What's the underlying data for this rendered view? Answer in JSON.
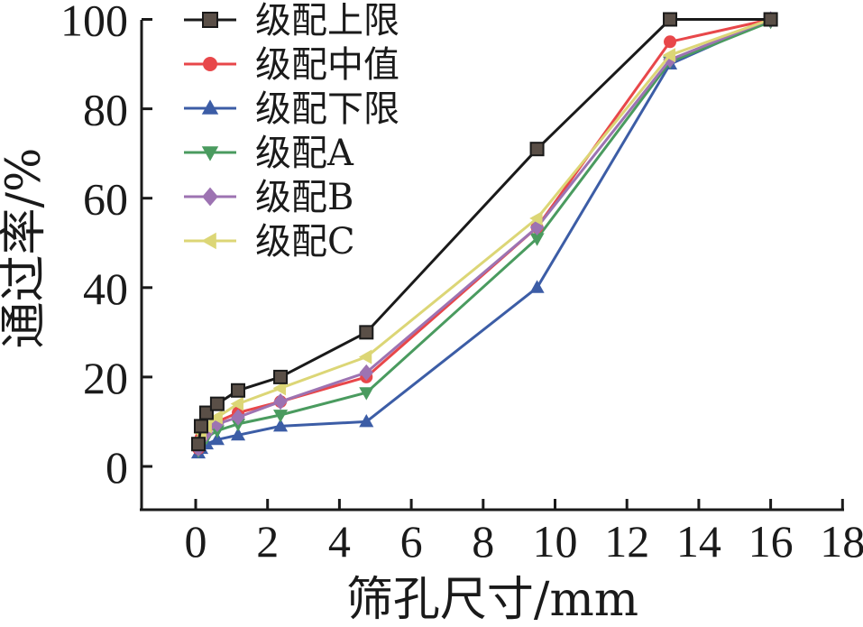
{
  "chart_data": {
    "type": "line",
    "title": "",
    "xlabel": "筛孔尺寸/mm",
    "ylabel": "通过率/%",
    "xlim": [
      -1.5,
      18
    ],
    "ylim": [
      -10,
      100
    ],
    "xticks": [
      0,
      2,
      4,
      6,
      8,
      10,
      12,
      14,
      16,
      18
    ],
    "yticks": [
      0,
      20,
      40,
      60,
      80,
      100
    ],
    "grid": false,
    "legend_position": "top-left",
    "x": [
      0.075,
      0.15,
      0.3,
      0.6,
      1.18,
      2.36,
      4.75,
      9.5,
      13.2,
      16
    ],
    "series": [
      {
        "name": "级配上限",
        "marker": "square",
        "color": "#1a1a1a",
        "marker_fill": "#5a4f47",
        "values": [
          5,
          9,
          12,
          14,
          17,
          20,
          30,
          71,
          100,
          100
        ]
      },
      {
        "name": "级配中值",
        "marker": "circle",
        "color": "#e8474a",
        "marker_fill": "#e8474a",
        "values": [
          4,
          6.5,
          8.5,
          10,
          12,
          14.5,
          20,
          53.5,
          95,
          100
        ]
      },
      {
        "name": "级配下限",
        "marker": "triangle-up",
        "color": "#3c5da6",
        "marker_fill": "#3c5da6",
        "values": [
          3,
          4,
          5,
          6,
          7,
          9,
          10,
          40,
          90,
          100
        ]
      },
      {
        "name": "级配A",
        "marker": "triangle-down",
        "color": "#4a9b5f",
        "marker_fill": "#4a9b5f",
        "values": [
          3.5,
          5,
          6.5,
          8,
          9.5,
          11.5,
          16.5,
          51,
          90.5,
          99.5
        ]
      },
      {
        "name": "级配B",
        "marker": "diamond",
        "color": "#9d73b2",
        "marker_fill": "#9d73b2",
        "values": [
          4,
          6,
          7.5,
          9.5,
          11,
          14.5,
          21,
          53.5,
          91,
          100
        ]
      },
      {
        "name": "级配C",
        "marker": "triangle-left",
        "color": "#dcd676",
        "marker_fill": "#dcd676",
        "values": [
          6,
          7.5,
          9,
          11,
          14,
          17.5,
          24.5,
          55.5,
          92,
          100
        ]
      }
    ]
  }
}
